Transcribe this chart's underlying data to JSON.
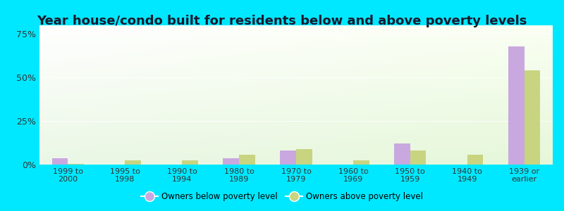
{
  "title": "Year house/condo built for residents below and above poverty levels",
  "categories": [
    "1999 to\n2000",
    "1995 to\n1998",
    "1990 to\n1994",
    "1980 to\n1989",
    "1970 to\n1979",
    "1960 to\n1969",
    "1950 to\n1959",
    "1940 to\n1949",
    "1939 or\nearlier"
  ],
  "below_poverty": [
    3.5,
    0.0,
    0.0,
    3.5,
    8.0,
    0.0,
    12.0,
    0.0,
    68.0
  ],
  "above_poverty": [
    0.5,
    2.5,
    2.5,
    5.5,
    9.0,
    2.5,
    8.0,
    5.5,
    54.0
  ],
  "below_color": "#c9a8e0",
  "above_color": "#c8d480",
  "background_outer": "#00e8ff",
  "yticks": [
    0,
    25,
    50,
    75
  ],
  "ylim": [
    0,
    80
  ],
  "title_fontsize": 13,
  "tick_fontsize": 8,
  "legend_below_label": "Owners below poverty level",
  "legend_above_label": "Owners above poverty level"
}
